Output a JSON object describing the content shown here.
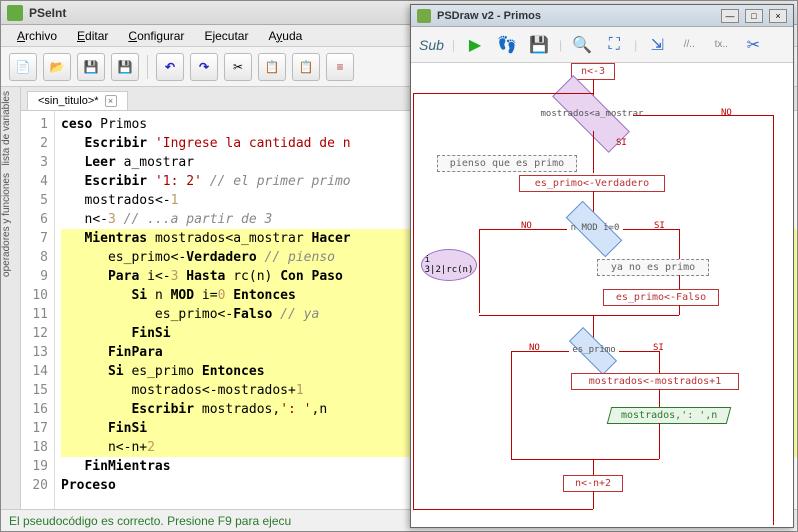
{
  "pseint": {
    "title": "PSeInt",
    "menus": [
      "Archivo",
      "Editar",
      "Configurar",
      "Ejecutar",
      "Ayuda"
    ],
    "tab": "<sin_titulo>*",
    "status": "El pseudocódigo es correcto. Presione F9 para ejecu",
    "sidebar_labels": [
      "lista de variables",
      "operadores y funciones"
    ],
    "code": [
      {
        "n": 1,
        "hl": false,
        "html": "<span class='kw'>ceso</span> <span class='var'>Primos</span>"
      },
      {
        "n": 2,
        "hl": false,
        "html": "   <span class='kw'>Escribir</span> <span class='str'>'Ingrese la cantidad de n</span>"
      },
      {
        "n": 3,
        "hl": false,
        "html": "   <span class='kw'>Leer</span> <span class='var'>a_mostrar</span>"
      },
      {
        "n": 4,
        "hl": false,
        "html": "   <span class='kw'>Escribir</span> <span class='str'>'1: 2'</span> <span class='cmt'>// el primer primo</span>"
      },
      {
        "n": 5,
        "hl": false,
        "html": "   <span class='var'>mostrados</span><span class='op'>&lt;-</span><span class='num'>1</span>"
      },
      {
        "n": 6,
        "hl": false,
        "html": "   <span class='var'>n</span><span class='op'>&lt;-</span><span class='num'>3</span> <span class='cmt'>// ...a partir de 3</span>"
      },
      {
        "n": 7,
        "hl": true,
        "html": "   <span class='kw'>Mientras</span> <span class='var'>mostrados</span><span class='op'>&lt;</span><span class='var'>a_mostrar</span> <span class='kw'>Hacer</span>"
      },
      {
        "n": 8,
        "hl": true,
        "html": "      <span class='var'>es_primo</span><span class='op'>&lt;-</span><span class='kw'>Verdadero</span> <span class='cmt'>// pienso</span>"
      },
      {
        "n": 9,
        "hl": true,
        "html": "      <span class='kw'>Para</span> <span class='var'>i</span><span class='op'>&lt;-</span><span class='num'>3</span> <span class='kw'>Hasta</span> <span class='var'>rc(n)</span> <span class='kw'>Con Paso</span>"
      },
      {
        "n": 10,
        "hl": true,
        "html": "         <span class='kw'>Si</span> <span class='var'>n</span> <span class='kw'>MOD</span> <span class='var'>i</span><span class='op'>=</span><span class='num'>0</span> <span class='kw'>Entonces</span>"
      },
      {
        "n": 11,
        "hl": true,
        "html": "            <span class='var'>es_primo</span><span class='op'>&lt;-</span><span class='kw'>Falso</span> <span class='cmt'>// ya</span>"
      },
      {
        "n": 12,
        "hl": true,
        "html": "         <span class='kw'>FinSi</span>"
      },
      {
        "n": 13,
        "hl": true,
        "html": "      <span class='kw'>FinPara</span>"
      },
      {
        "n": 14,
        "hl": true,
        "html": "      <span class='kw'>Si</span> <span class='var'>es_primo</span> <span class='kw'>Entonces</span>"
      },
      {
        "n": 15,
        "hl": true,
        "html": "         <span class='var'>mostrados</span><span class='op'>&lt;-</span><span class='var'>mostrados</span><span class='op'>+</span><span class='num'>1</span>"
      },
      {
        "n": 16,
        "hl": true,
        "html": "         <span class='kw'>Escribir</span> <span class='var'>mostrados</span>,<span class='str'>': '</span>,<span class='var'>n</span>"
      },
      {
        "n": 17,
        "hl": true,
        "html": "      <span class='kw'>FinSi</span>"
      },
      {
        "n": 18,
        "hl": true,
        "html": "      <span class='var'>n</span><span class='op'>&lt;-</span><span class='var'>n</span><span class='op'>+</span><span class='num'>2</span>"
      },
      {
        "n": 19,
        "hl": false,
        "html": "   <span class='kw'>FinMientras</span>"
      },
      {
        "n": 20,
        "hl": false,
        "html": "<span class='kw'>Proceso</span>"
      }
    ]
  },
  "psdraw": {
    "title": "PSDraw v2 - Primos",
    "sub_label": "Sub",
    "flowchart": {
      "top_proc": "n<-3",
      "main_decision": "mostrados<a_mostrar",
      "note1": "pienso que es primo",
      "assign1": "es_primo<-Verdadero",
      "mod_decision": "n MOD i=0",
      "note2": "ya no es primo",
      "assign2": "es_primo<-Falso",
      "for_loop": "i\n3 2 rc(n)",
      "primo_decision": "es_primo",
      "assign3": "mostrados<-mostrados+1",
      "output": "mostrados,': ',n",
      "assign4": "n<-n+2",
      "labels": {
        "no": "NO",
        "si": "SI"
      },
      "colors": {
        "edge": "#c00000",
        "diamond_fill": "#e8d4f0",
        "diamond_border": "#a070c0",
        "diamond_blue_fill": "#d4e4f8",
        "diamond_blue_border": "#6090d0",
        "proc_border": "#b33333",
        "proc_text": "#b33333",
        "io_border": "#2a7a2a",
        "io_text": "#2a7a2a",
        "io_fill": "#e8f4e8",
        "note_border": "#888888"
      }
    }
  }
}
